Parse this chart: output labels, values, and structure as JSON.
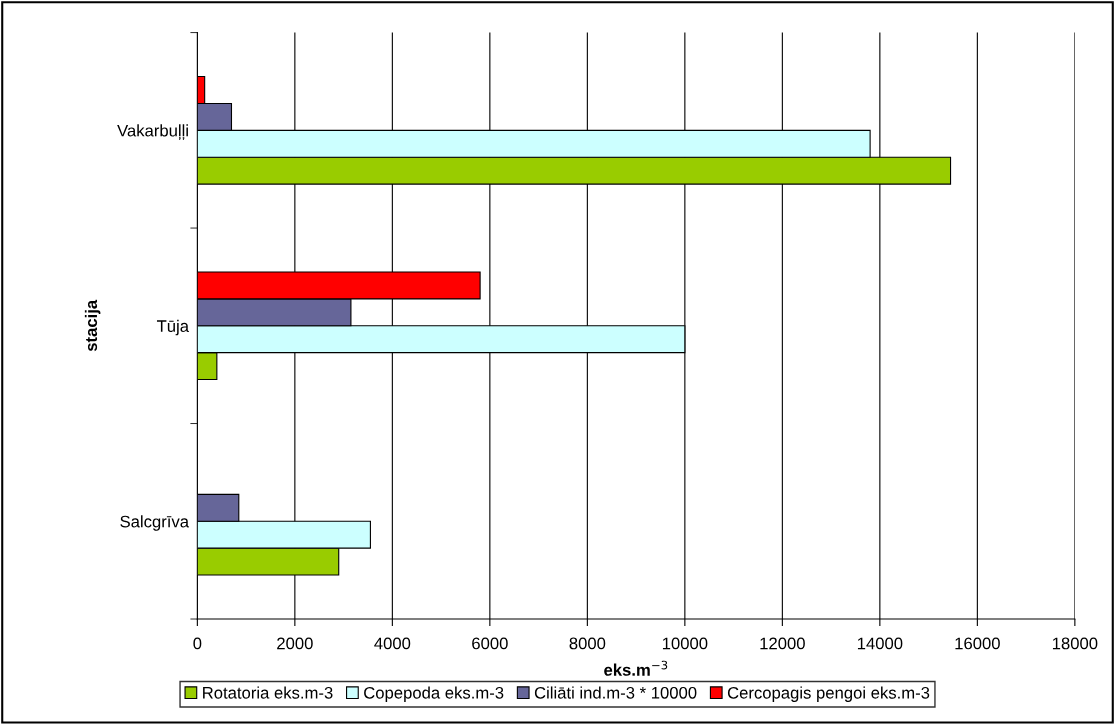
{
  "chart_data": {
    "type": "bar",
    "orientation": "horizontal",
    "categories": [
      "Vakarbuļļi",
      "Tūja",
      "Salcgrīva"
    ],
    "series": [
      {
        "name": "Rotatoria eks.m-3",
        "color": "#99cc00",
        "values": [
          15450,
          400,
          2900
        ]
      },
      {
        "name": "Copepoda eks.m-3",
        "color": "#ccffff",
        "values": [
          13800,
          10000,
          3550
        ]
      },
      {
        "name": "Ciliāti ind.m-3 * 10000",
        "color": "#666699",
        "values": [
          700,
          3150,
          850
        ]
      },
      {
        "name": "Cercopagis pengoi eks.m-3",
        "color": "#ff0000",
        "values": [
          150,
          5800,
          null
        ]
      }
    ],
    "xlabel": "eks.m$^{−3}$",
    "ylabel": "stacija",
    "xlim": [
      0,
      18000
    ],
    "xticks": [
      0,
      2000,
      4000,
      6000,
      8000,
      10000,
      12000,
      14000,
      16000,
      18000
    ],
    "grid": "x",
    "legend": "bottom"
  }
}
